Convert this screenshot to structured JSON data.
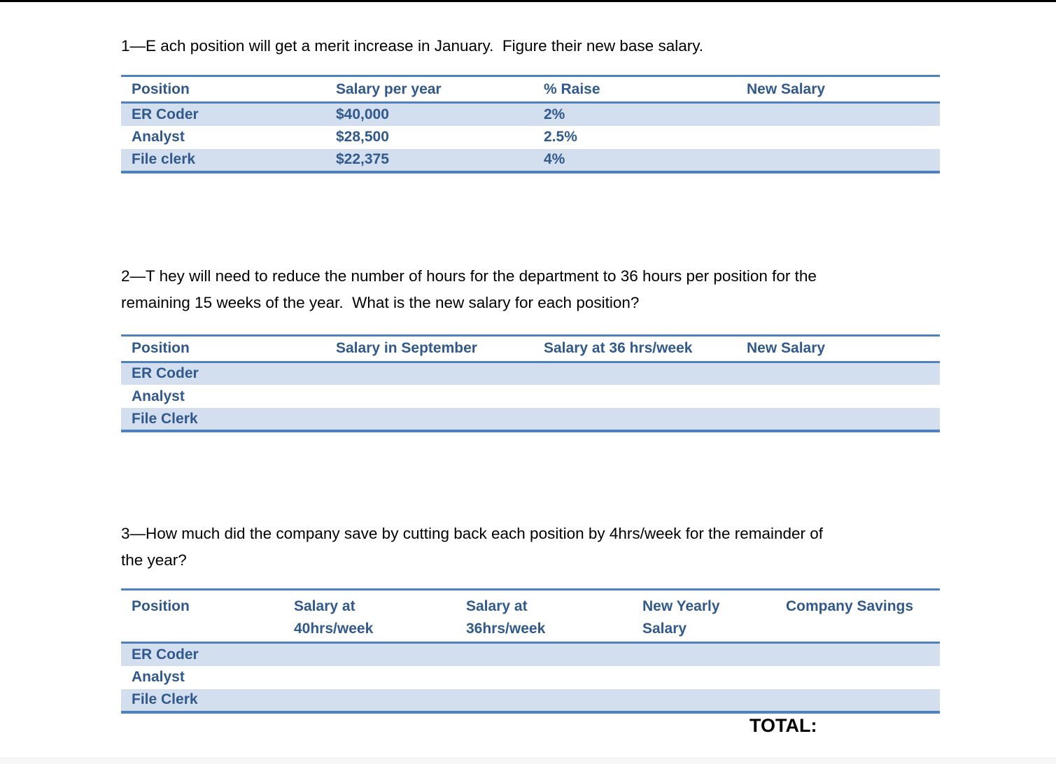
{
  "colors": {
    "accent_border": "#4F81BD",
    "row_shade": "#D3DFEE",
    "table_text": "#31598C",
    "body_text": "#000000",
    "top_bar": "#000000"
  },
  "q1": {
    "text": "1—E ach position will get a merit increase in January.  Figure their new base salary.",
    "table": {
      "headers": [
        "Position",
        "Salary per year",
        "% Raise",
        "New Salary"
      ],
      "rows": [
        [
          "ER Coder",
          "$40,000",
          "2%",
          ""
        ],
        [
          "Analyst",
          "$28,500",
          "2.5%",
          ""
        ],
        [
          "File clerk",
          "$22,375",
          "4%",
          ""
        ]
      ]
    }
  },
  "q2": {
    "text": "2—T hey will need to reduce the number of hours for the department to 36 hours per position for the\nremaining 15 weeks of the year.  What is the new salary for each position?",
    "table": {
      "headers": [
        "Position",
        "Salary in September",
        "Salary at 36 hrs/week",
        "New Salary"
      ],
      "rows": [
        [
          "ER Coder",
          "",
          "",
          ""
        ],
        [
          "Analyst",
          "",
          "",
          ""
        ],
        [
          "File Clerk",
          "",
          "",
          ""
        ]
      ]
    }
  },
  "q3": {
    "text": "3—How much did the company save by cutting back each position by 4hrs/week for the remainder of\nthe year?",
    "table": {
      "headers": [
        "Position",
        "Salary at\n40hrs/week",
        "Salary at\n36hrs/week",
        "New Yearly\nSalary",
        "Company Savings"
      ],
      "rows": [
        [
          "ER Coder",
          "",
          "",
          "",
          ""
        ],
        [
          "Analyst",
          "",
          "",
          "",
          ""
        ],
        [
          "File Clerk",
          "",
          "",
          "",
          ""
        ]
      ]
    },
    "total_label": "TOTAL:"
  }
}
